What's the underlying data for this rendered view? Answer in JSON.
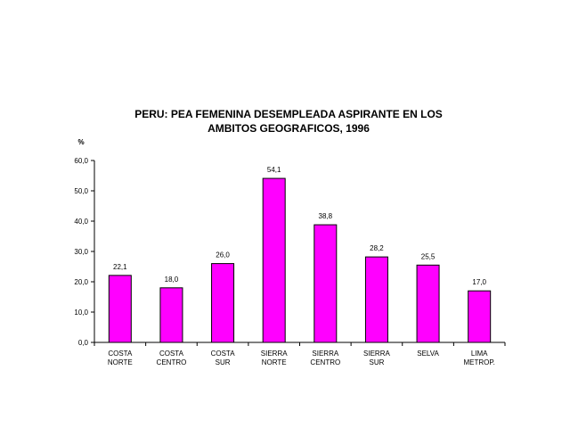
{
  "chart_data": {
    "type": "bar",
    "title_lines": [
      "PERU: PEA FEMENINA DESEMPLEADA  ASPIRANTE EN LOS",
      "AMBITOS GEOGRAFICOS, 1996"
    ],
    "ylabel": "%",
    "xlabel": "",
    "ylim": [
      0,
      60
    ],
    "yticks": [
      "0,0",
      "10,0",
      "20,0",
      "30,0",
      "40,0",
      "50,0",
      "60,0"
    ],
    "grid": false,
    "legend": "none",
    "bar_color": "#ff00ff",
    "categories": [
      [
        "COSTA",
        "NORTE"
      ],
      [
        "COSTA",
        "CENTRO"
      ],
      [
        "COSTA",
        "SUR"
      ],
      [
        "SIERRA",
        "NORTE"
      ],
      [
        "SIERRA",
        "CENTRO"
      ],
      [
        "SIERRA",
        "SUR"
      ],
      [
        "SELVA"
      ],
      [
        "LIMA",
        "METROP."
      ]
    ],
    "values": [
      22.1,
      18.0,
      26.0,
      54.1,
      38.8,
      28.2,
      25.5,
      17.0
    ],
    "data_labels": [
      "22,1",
      "18,0",
      "26,0",
      "54,1",
      "38,8",
      "28,2",
      "25,5",
      "17,0"
    ]
  }
}
